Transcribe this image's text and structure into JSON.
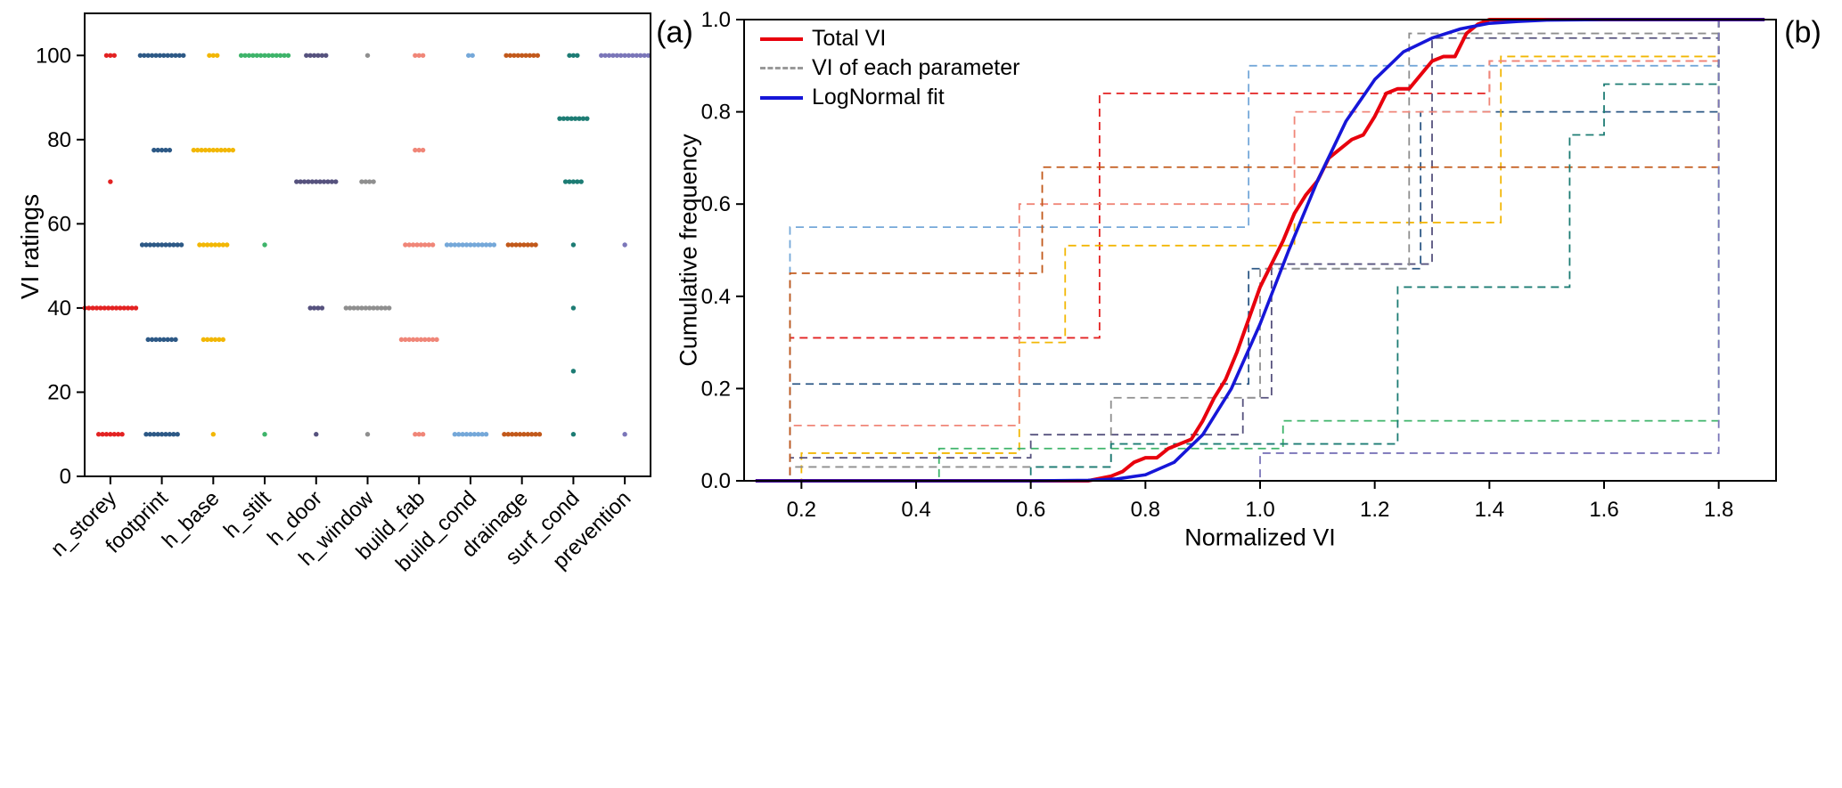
{
  "figure": {
    "background": "#ffffff"
  },
  "chart_data": [
    {
      "type": "scatter",
      "variant": "strip-plot",
      "panel_label": "(a)",
      "ylabel": "VI ratings",
      "ylim": [
        0,
        110
      ],
      "yticks": [
        0,
        20,
        40,
        60,
        80,
        100
      ],
      "grid": false,
      "categories": [
        "n_storey",
        "footprint",
        "h_base",
        "h_stilt",
        "h_door",
        "h_window",
        "build_fab",
        "build_cond",
        "drainage",
        "surf_cond",
        "prevention"
      ],
      "series": [
        {
          "name": "n_storey",
          "color": "#e32222",
          "levels": [
            {
              "vi": 100,
              "count": 3
            },
            {
              "vi": 70,
              "count": 1
            },
            {
              "vi": 40,
              "count": 14
            },
            {
              "vi": 10,
              "count": 7
            }
          ]
        },
        {
          "name": "footprint",
          "color": "#2d5986",
          "levels": [
            {
              "vi": 100,
              "count": 12
            },
            {
              "vi": 77.5,
              "count": 5
            },
            {
              "vi": 55,
              "count": 11
            },
            {
              "vi": 32.5,
              "count": 8
            },
            {
              "vi": 10,
              "count": 9
            }
          ]
        },
        {
          "name": "h_base",
          "color": "#f2b705",
          "levels": [
            {
              "vi": 100,
              "count": 3
            },
            {
              "vi": 77.5,
              "count": 11
            },
            {
              "vi": 55,
              "count": 8
            },
            {
              "vi": 32.5,
              "count": 6
            },
            {
              "vi": 10,
              "count": 1
            }
          ]
        },
        {
          "name": "h_stilt",
          "color": "#3eb46a",
          "levels": [
            {
              "vi": 100,
              "count": 13
            },
            {
              "vi": 55,
              "count": 1
            },
            {
              "vi": 10,
              "count": 1
            }
          ]
        },
        {
          "name": "h_door",
          "color": "#56527e",
          "levels": [
            {
              "vi": 100,
              "count": 6
            },
            {
              "vi": 70,
              "count": 11
            },
            {
              "vi": 40,
              "count": 4
            },
            {
              "vi": 10,
              "count": 1
            }
          ]
        },
        {
          "name": "h_window",
          "color": "#8f8f8f",
          "levels": [
            {
              "vi": 100,
              "count": 1
            },
            {
              "vi": 70,
              "count": 4
            },
            {
              "vi": 40,
              "count": 12
            },
            {
              "vi": 10,
              "count": 1
            }
          ]
        },
        {
          "name": "build_fab",
          "color": "#f08678",
          "levels": [
            {
              "vi": 100,
              "count": 3
            },
            {
              "vi": 77.5,
              "count": 3
            },
            {
              "vi": 55,
              "count": 8
            },
            {
              "vi": 32.5,
              "count": 10
            },
            {
              "vi": 10,
              "count": 3
            }
          ]
        },
        {
          "name": "build_cond",
          "color": "#75a8d9",
          "levels": [
            {
              "vi": 100,
              "count": 2
            },
            {
              "vi": 55,
              "count": 13
            },
            {
              "vi": 10,
              "count": 9
            }
          ]
        },
        {
          "name": "drainage",
          "color": "#c2591b",
          "levels": [
            {
              "vi": 100,
              "count": 9
            },
            {
              "vi": 55,
              "count": 8
            },
            {
              "vi": 10,
              "count": 10
            }
          ]
        },
        {
          "name": "surf_cond",
          "color": "#1d7c74",
          "levels": [
            {
              "vi": 100,
              "count": 3
            },
            {
              "vi": 85,
              "count": 8
            },
            {
              "vi": 70,
              "count": 5
            },
            {
              "vi": 55,
              "count": 1
            },
            {
              "vi": 40,
              "count": 1
            },
            {
              "vi": 25,
              "count": 1
            },
            {
              "vi": 10,
              "count": 1
            }
          ]
        },
        {
          "name": "prevention",
          "color": "#7b76b9",
          "levels": [
            {
              "vi": 100,
              "count": 13
            },
            {
              "vi": 55,
              "count": 1
            },
            {
              "vi": 10,
              "count": 1
            }
          ]
        }
      ]
    },
    {
      "type": "line",
      "variant": "cumulative-frequency",
      "panel_label": "(b)",
      "xlabel": "Normalized VI",
      "ylabel": "Cumulative frequency",
      "xlim": [
        0.1,
        1.9
      ],
      "ylim": [
        0.0,
        1.0
      ],
      "xticks": [
        "0.2",
        "0.4",
        "0.6",
        "0.8",
        "1.0",
        "1.2",
        "1.4",
        "1.6",
        "1.8"
      ],
      "yticks": [
        "0.0",
        "0.2",
        "0.4",
        "0.6",
        "0.8",
        "1.0"
      ],
      "grid": false,
      "legend_position": "top-left",
      "legend": [
        {
          "label": "Total VI",
          "color": "#e8000d",
          "style": "solid"
        },
        {
          "label": "VI of each parameter",
          "color": "#999999",
          "style": "dashed"
        },
        {
          "label": "LogNormal fit",
          "color": "#1616d8",
          "style": "solid"
        }
      ],
      "total_vi": {
        "name": "Total VI",
        "color": "#e8000d",
        "points": [
          [
            0.12,
            0
          ],
          [
            0.7,
            0
          ],
          [
            0.74,
            0.01
          ],
          [
            0.76,
            0.02
          ],
          [
            0.78,
            0.04
          ],
          [
            0.8,
            0.05
          ],
          [
            0.82,
            0.05
          ],
          [
            0.84,
            0.07
          ],
          [
            0.86,
            0.08
          ],
          [
            0.88,
            0.09
          ],
          [
            0.9,
            0.13
          ],
          [
            0.92,
            0.18
          ],
          [
            0.94,
            0.22
          ],
          [
            0.96,
            0.28
          ],
          [
            0.98,
            0.35
          ],
          [
            1.0,
            0.42
          ],
          [
            1.02,
            0.47
          ],
          [
            1.04,
            0.52
          ],
          [
            1.06,
            0.58
          ],
          [
            1.08,
            0.62
          ],
          [
            1.1,
            0.65
          ],
          [
            1.12,
            0.7
          ],
          [
            1.14,
            0.72
          ],
          [
            1.16,
            0.74
          ],
          [
            1.18,
            0.75
          ],
          [
            1.2,
            0.79
          ],
          [
            1.22,
            0.84
          ],
          [
            1.24,
            0.85
          ],
          [
            1.26,
            0.85
          ],
          [
            1.28,
            0.88
          ],
          [
            1.3,
            0.91
          ],
          [
            1.32,
            0.92
          ],
          [
            1.34,
            0.92
          ],
          [
            1.36,
            0.97
          ],
          [
            1.38,
            0.99
          ],
          [
            1.4,
            1.0
          ],
          [
            1.88,
            1.0
          ]
        ]
      },
      "lognormal_fit": {
        "name": "LogNormal fit",
        "color": "#1616d8",
        "points": [
          [
            0.12,
            0
          ],
          [
            0.6,
            0
          ],
          [
            0.7,
            0.001
          ],
          [
            0.75,
            0.004
          ],
          [
            0.8,
            0.013
          ],
          [
            0.85,
            0.04
          ],
          [
            0.9,
            0.1
          ],
          [
            0.95,
            0.2
          ],
          [
            1.0,
            0.34
          ],
          [
            1.05,
            0.5
          ],
          [
            1.1,
            0.65
          ],
          [
            1.15,
            0.78
          ],
          [
            1.2,
            0.87
          ],
          [
            1.25,
            0.93
          ],
          [
            1.3,
            0.96
          ],
          [
            1.35,
            0.98
          ],
          [
            1.4,
            0.992
          ],
          [
            1.45,
            0.996
          ],
          [
            1.5,
            0.999
          ],
          [
            1.6,
            1.0
          ],
          [
            1.88,
            1.0
          ]
        ]
      },
      "parameter_cdfs": [
        {
          "name": "n_storey",
          "color": "#e32222",
          "steps": [
            [
              0.18,
              0.31
            ],
            [
              0.72,
              0.84
            ],
            [
              1.4,
              0.91
            ],
            [
              1.8,
              1.0
            ]
          ]
        },
        {
          "name": "footprint",
          "color": "#2d5986",
          "steps": [
            [
              0.18,
              0.21
            ],
            [
              0.98,
              0.46
            ],
            [
              1.28,
              0.8
            ],
            [
              1.8,
              1.0
            ]
          ]
        },
        {
          "name": "h_base",
          "color": "#f2b705",
          "steps": [
            [
              0.2,
              0.06
            ],
            [
              0.58,
              0.3
            ],
            [
              0.66,
              0.51
            ],
            [
              1.06,
              0.56
            ],
            [
              1.42,
              0.92
            ],
            [
              1.8,
              1.0
            ]
          ]
        },
        {
          "name": "h_stilt",
          "color": "#3eb46a",
          "steps": [
            [
              0.44,
              0.07
            ],
            [
              1.04,
              0.13
            ],
            [
              1.8,
              1.0
            ]
          ]
        },
        {
          "name": "h_door",
          "color": "#56527e",
          "steps": [
            [
              0.18,
              0.05
            ],
            [
              0.6,
              0.1
            ],
            [
              0.97,
              0.18
            ],
            [
              1.02,
              0.47
            ],
            [
              1.3,
              0.96
            ],
            [
              1.8,
              1.0
            ]
          ]
        },
        {
          "name": "h_window",
          "color": "#8f8f8f",
          "steps": [
            [
              0.18,
              0.03
            ],
            [
              0.74,
              0.18
            ],
            [
              1.0,
              0.46
            ],
            [
              1.26,
              0.97
            ],
            [
              1.8,
              1.0
            ]
          ]
        },
        {
          "name": "build_fab",
          "color": "#f08678",
          "steps": [
            [
              0.18,
              0.12
            ],
            [
              0.58,
              0.6
            ],
            [
              1.06,
              0.8
            ],
            [
              1.4,
              0.91
            ],
            [
              1.8,
              1.0
            ]
          ]
        },
        {
          "name": "build_cond",
          "color": "#75a8d9",
          "steps": [
            [
              0.18,
              0.55
            ],
            [
              0.98,
              0.9
            ],
            [
              1.8,
              1.0
            ]
          ]
        },
        {
          "name": "drainage",
          "color": "#c2591b",
          "steps": [
            [
              0.18,
              0.45
            ],
            [
              0.62,
              0.68
            ],
            [
              1.8,
              1.0
            ]
          ]
        },
        {
          "name": "surf_cond",
          "color": "#1d7c74",
          "steps": [
            [
              0.6,
              0.03
            ],
            [
              0.74,
              0.08
            ],
            [
              1.24,
              0.42
            ],
            [
              1.54,
              0.75
            ],
            [
              1.6,
              0.86
            ],
            [
              1.8,
              1.0
            ]
          ]
        },
        {
          "name": "prevention",
          "color": "#7b76b9",
          "steps": [
            [
              1.0,
              0.06
            ],
            [
              1.8,
              1.0
            ]
          ]
        }
      ]
    }
  ]
}
